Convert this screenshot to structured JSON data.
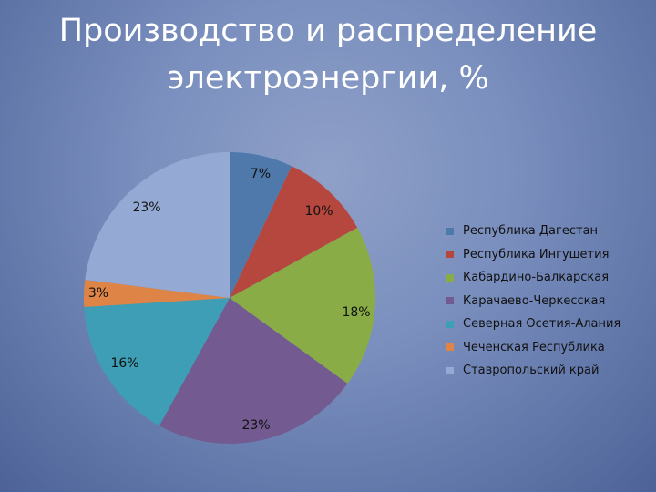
{
  "slide": {
    "title_line1": "Производство и распределение",
    "title_line2": "электроэнергии, %"
  },
  "chart_data": {
    "type": "pie",
    "title": "Производство и распределение электроэнергии, %",
    "start_angle_deg": 0,
    "direction": "clockwise",
    "legend_position": "right",
    "slices": [
      {
        "label": "Республика Дагестан",
        "value": 7,
        "value_label": "7%",
        "color": "#4f79aa"
      },
      {
        "label": "Республика Ингушетия",
        "value": 10,
        "value_label": "10%",
        "color": "#b5473f"
      },
      {
        "label": "Кабардино-Балкарская",
        "value": 18,
        "value_label": "18%",
        "color": "#8aac46"
      },
      {
        "label": "Карачаево-Черкесская",
        "value": 23,
        "value_label": "23%",
        "color": "#735b91"
      },
      {
        "label": "Северная Осетия-Алания",
        "value": 16,
        "value_label": "16%",
        "color": "#3d9eb5"
      },
      {
        "label": "Чеченская Республика",
        "value": 3,
        "value_label": "3%",
        "color": "#dd8446"
      },
      {
        "label": "Ставропольский край",
        "value": 23,
        "value_label": "23%",
        "color": "#94a9d3"
      }
    ]
  }
}
